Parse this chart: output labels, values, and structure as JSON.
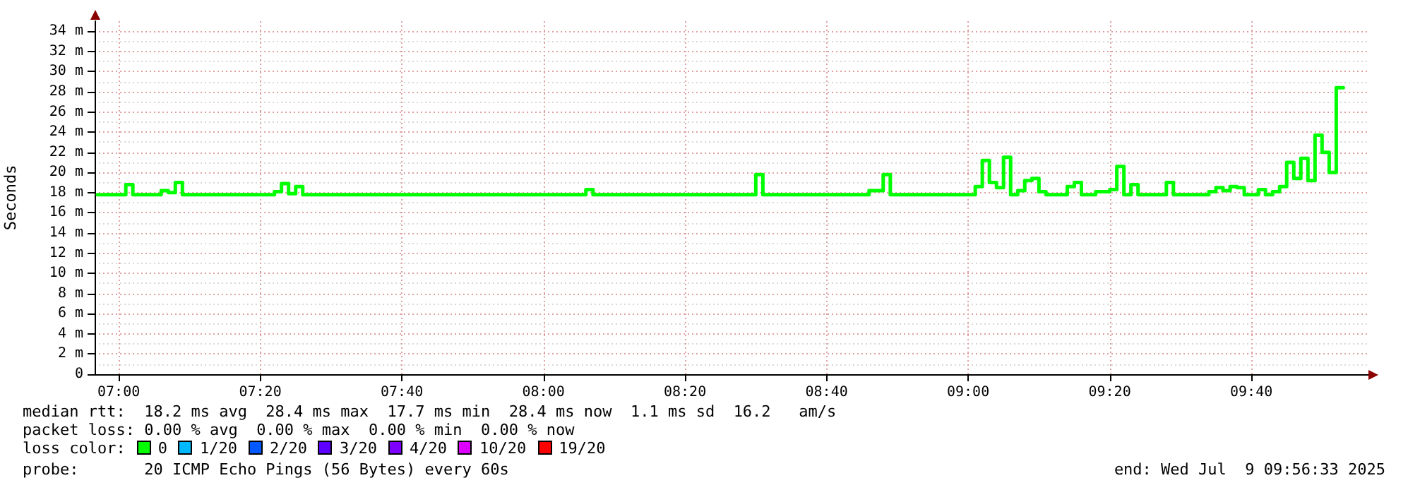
{
  "chart_data": {
    "type": "step",
    "ylabel": "Seconds",
    "xlim": [
      6.9433,
      9.9425
    ],
    "xticks": [
      {
        "value": 7,
        "label": "07:00"
      },
      {
        "value": 7.3333,
        "label": "07:20"
      },
      {
        "value": 7.6667,
        "label": "07:40"
      },
      {
        "value": 8,
        "label": "08:00"
      },
      {
        "value": 8.3333,
        "label": "08:20"
      },
      {
        "value": 8.6667,
        "label": "08:40"
      },
      {
        "value": 9,
        "label": "09:00"
      },
      {
        "value": 9.3333,
        "label": "09:20"
      },
      {
        "value": 9.6667,
        "label": "09:40"
      }
    ],
    "ylim": [
      0,
      35
    ],
    "yticks": [
      {
        "value": 0,
        "label": "0"
      },
      {
        "value": 2,
        "label": "2 m"
      },
      {
        "value": 4,
        "label": "4 m"
      },
      {
        "value": 6,
        "label": "6 m"
      },
      {
        "value": 8,
        "label": "8 m"
      },
      {
        "value": 10,
        "label": "10 m"
      },
      {
        "value": 12,
        "label": "12 m"
      },
      {
        "value": 14,
        "label": "14 m"
      },
      {
        "value": 16,
        "label": "16 m"
      },
      {
        "value": 18,
        "label": "18 m"
      },
      {
        "value": 20,
        "label": "20 m"
      },
      {
        "value": 22,
        "label": "22 m"
      },
      {
        "value": 24,
        "label": "24 m"
      },
      {
        "value": 26,
        "label": "26 m"
      },
      {
        "value": 28,
        "label": "28 m"
      },
      {
        "value": 30,
        "label": "30 m"
      },
      {
        "value": 32,
        "label": "32 m"
      },
      {
        "value": 34,
        "label": "34 m"
      }
    ],
    "grid": true,
    "marker": "none",
    "line_style": "solid",
    "series": [
      {
        "color": "#00ff00",
        "x": [
          6.95,
          7.0167,
          7.0333,
          7.1,
          7.1167,
          7.1333,
          7.15,
          7.3667,
          7.3833,
          7.4,
          7.4167,
          7.4333,
          8.1,
          8.1167,
          8.5,
          8.5167,
          8.7667,
          8.8,
          8.8167,
          9.0167,
          9.0333,
          9.05,
          9.0667,
          9.0833,
          9.1,
          9.1167,
          9.1333,
          9.15,
          9.1667,
          9.1833,
          9.2333,
          9.25,
          9.2667,
          9.3,
          9.3333,
          9.35,
          9.3667,
          9.3833,
          9.4,
          9.4667,
          9.4833,
          9.5667,
          9.5833,
          9.6,
          9.6167,
          9.6333,
          9.65,
          9.6833,
          9.7,
          9.7167,
          9.7333,
          9.75,
          9.7667,
          9.7833,
          9.8,
          9.8167,
          9.8333,
          9.85,
          9.8667,
          9.8833
        ],
        "values": [
          17.8,
          18.8,
          17.8,
          18.2,
          18.0,
          19.0,
          17.8,
          18.1,
          18.9,
          17.9,
          18.6,
          17.8,
          18.3,
          17.8,
          19.8,
          17.8,
          18.2,
          19.8,
          17.8,
          18.6,
          21.2,
          19.0,
          18.5,
          21.5,
          17.8,
          18.2,
          19.2,
          19.4,
          18.1,
          17.8,
          18.6,
          19.0,
          17.8,
          18.1,
          18.3,
          20.6,
          17.8,
          18.8,
          17.8,
          19.0,
          17.8,
          18.1,
          18.5,
          18.2,
          18.6,
          18.5,
          17.8,
          18.3,
          17.8,
          18.1,
          18.6,
          21.0,
          19.4,
          21.4,
          19.2,
          23.7,
          22.0,
          20.0,
          28.4,
          28.4
        ]
      }
    ],
    "annotations": [
      "median rtt:  18.2 ms avg  28.4 ms max  17.7 ms min  28.4 ms now  1.1 ms sd  16.2   am/s",
      "packet loss: 0.00 % avg  0.00 % max  0.00 % min  0.00 % now",
      "loss color:",
      "0",
      "1/20",
      "2/20",
      "3/20",
      "4/20",
      "10/20",
      "19/20",
      "probe:       20 ICMP Echo Pings (56 Bytes) every 60s",
      "end: Wed Jul  9 09:56:33 2025"
    ]
  }
}
